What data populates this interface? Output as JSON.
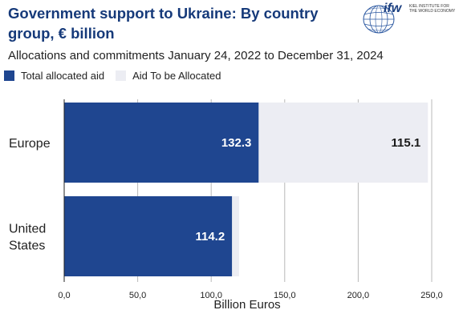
{
  "header": {
    "title": "Government support to Ukraine: By country group, € billion",
    "subtitle": "Allocations and commitments January 24, 2022 to December 31, 2024"
  },
  "logo": {
    "wordmark": "ifw",
    "line1": "KIEL INSTITUTE FOR",
    "line2": "THE WORLD ECONOMY"
  },
  "colors": {
    "allocated": "#1f4690",
    "to_be_allocated": "#ecedf3",
    "title": "#163a7a",
    "grid": "#b8b8b8"
  },
  "legend": {
    "allocated": "Total allocated aid",
    "to_be_allocated": "Aid To be Allocated"
  },
  "chart_data": {
    "type": "bar",
    "orientation": "horizontal",
    "stacked": true,
    "title": "Government support to Ukraine: By country group, € billion",
    "subtitle": "Allocations and commitments January 24, 2022 to December 31, 2024",
    "categories": [
      "Europe",
      "United States"
    ],
    "category_lines": [
      [
        "Europe"
      ],
      [
        "United",
        "States"
      ]
    ],
    "series": [
      {
        "name": "Total allocated aid",
        "values": [
          132.3,
          114.2
        ],
        "labels": [
          "132.3",
          "114.2"
        ]
      },
      {
        "name": "Aid To be Allocated",
        "values": [
          115.1,
          4.8
        ],
        "labels": [
          "115.1",
          ""
        ]
      }
    ],
    "xlabel": "Billion Euros",
    "xlim": [
      0,
      250
    ],
    "xticks": [
      0,
      50,
      100,
      150,
      200,
      250
    ],
    "xtick_labels": [
      "0,0",
      "50,0",
      "100,0",
      "150,0",
      "200,0",
      "250,0"
    ],
    "grid": true,
    "legend_position": "top-left"
  }
}
